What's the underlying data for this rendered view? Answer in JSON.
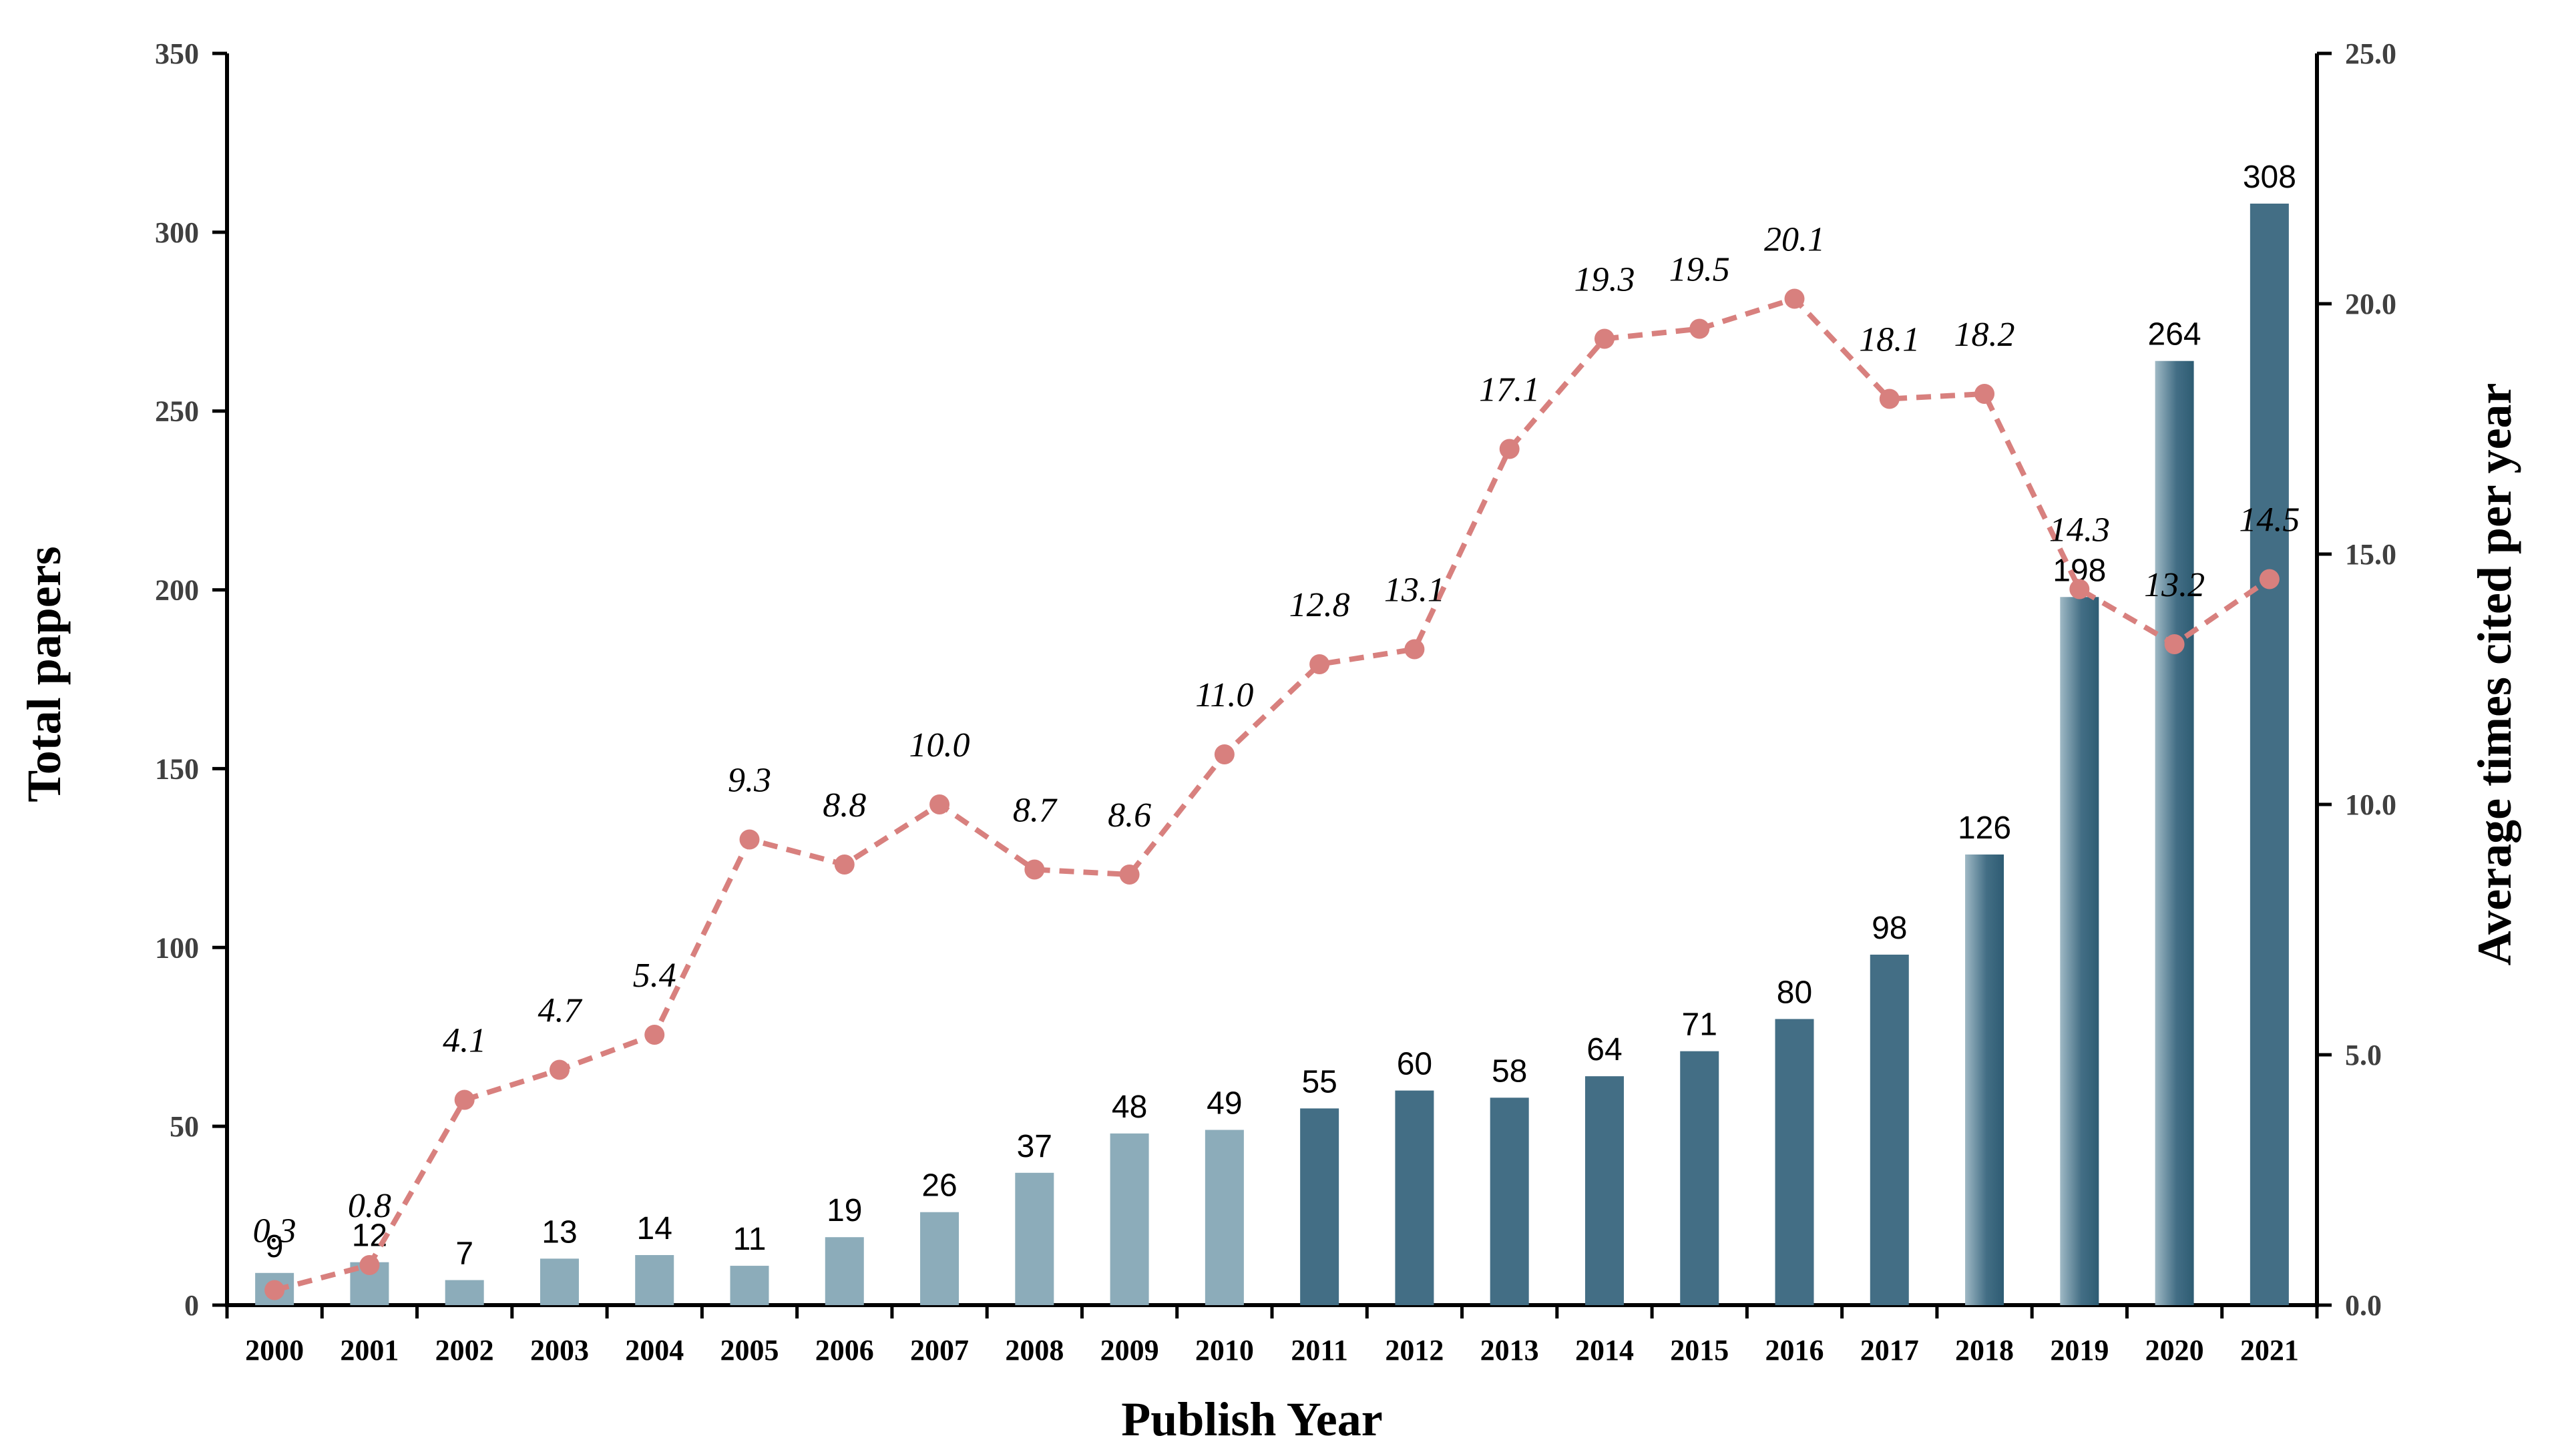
{
  "chart_data": {
    "type": "bar+line",
    "xlabel": "Publish Year",
    "ylabel": "Total papers",
    "y2label": "Average times cited per year",
    "ylim": [
      0,
      350
    ],
    "y2lim": [
      0,
      25
    ],
    "yticks": [
      "0",
      "50",
      "100",
      "150",
      "200",
      "250",
      "300",
      "350"
    ],
    "y2ticks": [
      "0.0",
      "5.0",
      "10.0",
      "15.0",
      "20.0",
      "25.0"
    ],
    "categories": [
      "2000",
      "2001",
      "2002",
      "2003",
      "2004",
      "2005",
      "2006",
      "2007",
      "2008",
      "2009",
      "2010",
      "2011",
      "2012",
      "2013",
      "2014",
      "2015",
      "2016",
      "2017",
      "2018",
      "2019",
      "2020",
      "2021"
    ],
    "series": [
      {
        "name": "Total papers",
        "type": "bar",
        "axis": "left",
        "values": [
          9,
          12,
          7,
          13,
          14,
          11,
          19,
          26,
          37,
          48,
          49,
          55,
          60,
          58,
          64,
          71,
          80,
          98,
          126,
          198,
          264,
          308
        ],
        "labels": [
          "9",
          "12",
          "7",
          "13",
          "14",
          "11",
          "19",
          "26",
          "37",
          "48",
          "49",
          "55",
          "60",
          "58",
          "64",
          "71",
          "80",
          "98",
          "126",
          "198",
          "264",
          "308"
        ]
      },
      {
        "name": "Average times cited per year",
        "type": "line",
        "axis": "right",
        "values": [
          0.3,
          0.8,
          4.1,
          4.7,
          5.4,
          9.3,
          8.8,
          10.0,
          8.7,
          8.6,
          11.0,
          12.8,
          13.1,
          17.1,
          19.3,
          19.5,
          20.1,
          18.1,
          18.2,
          14.3,
          13.2,
          14.5
        ],
        "labels": [
          "0.3",
          "0.8",
          "4.1",
          "4.7",
          "5.4",
          "9.3",
          "8.8",
          "10.0",
          "8.7",
          "8.6",
          "11.0",
          "12.8",
          "13.1",
          "17.1",
          "19.3",
          "19.5",
          "20.1",
          "18.1",
          "18.2",
          "14.3",
          "13.2",
          "14.5"
        ]
      }
    ],
    "colors": {
      "bar_light": "#8CACBA",
      "bar_dark": "#436E85",
      "bar_gradient_dark": "#2E5C73",
      "line": "#D8807E",
      "axis": "#000000"
    }
  }
}
